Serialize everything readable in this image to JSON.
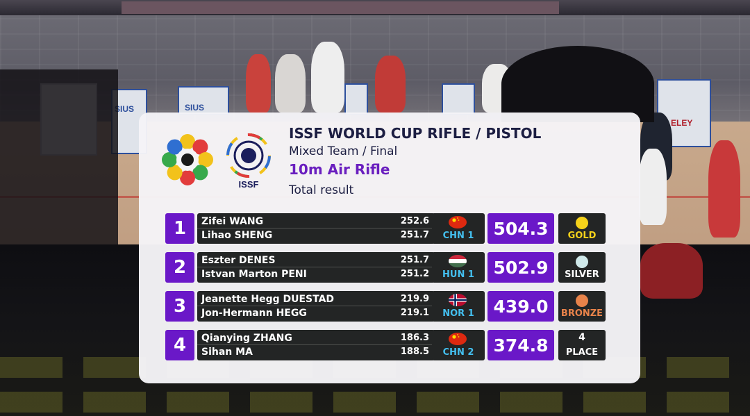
{
  "header": {
    "title": "ISSF WORLD CUP RIFLE / PISTOL",
    "subtitle": "Mixed Team / Final",
    "event": "10m Air Rifle",
    "result_type": "Total result",
    "issf_logo_text": "ISSF"
  },
  "venue_signs": [
    "SIUS",
    "SIUS",
    "ELEY"
  ],
  "colors": {
    "rank_purple": "#6a18c8",
    "card_dark": "#232525",
    "noc_blue": "#44c0f0",
    "gold": "#f5d21a",
    "silver": "#cfe9ea",
    "bronze": "#e8834a"
  },
  "results": [
    {
      "rank": "1",
      "athletes": [
        {
          "name": "Zifei WANG",
          "score": "252.6"
        },
        {
          "name": "Lihao SHENG",
          "score": "251.7"
        }
      ],
      "flag": "china-flag-icon",
      "noc": "CHN 1",
      "total": "504.3",
      "medal": {
        "icon": "gold-medal-icon",
        "number": "",
        "label": "GOLD"
      }
    },
    {
      "rank": "2",
      "athletes": [
        {
          "name": "Eszter DENES",
          "score": "251.7"
        },
        {
          "name": "Istvan Marton PENI",
          "score": "251.2"
        }
      ],
      "flag": "hungary-flag-icon",
      "noc": "HUN 1",
      "total": "502.9",
      "medal": {
        "icon": "silver-medal-icon",
        "number": "",
        "label": "SILVER"
      }
    },
    {
      "rank": "3",
      "athletes": [
        {
          "name": "Jeanette Hegg DUESTAD",
          "score": "219.9"
        },
        {
          "name": "Jon-Hermann HEGG",
          "score": "219.1"
        }
      ],
      "flag": "norway-flag-icon",
      "noc": "NOR 1",
      "total": "439.0",
      "medal": {
        "icon": "bronze-medal-icon",
        "number": "",
        "label": "BRONZE"
      }
    },
    {
      "rank": "4",
      "athletes": [
        {
          "name": "Qianying ZHANG",
          "score": "186.3"
        },
        {
          "name": "Sihan MA",
          "score": "188.5"
        }
      ],
      "flag": "china-flag-icon",
      "noc": "CHN 2",
      "total": "374.8",
      "medal": {
        "icon": "",
        "number": "4",
        "label": "PLACE"
      }
    }
  ]
}
